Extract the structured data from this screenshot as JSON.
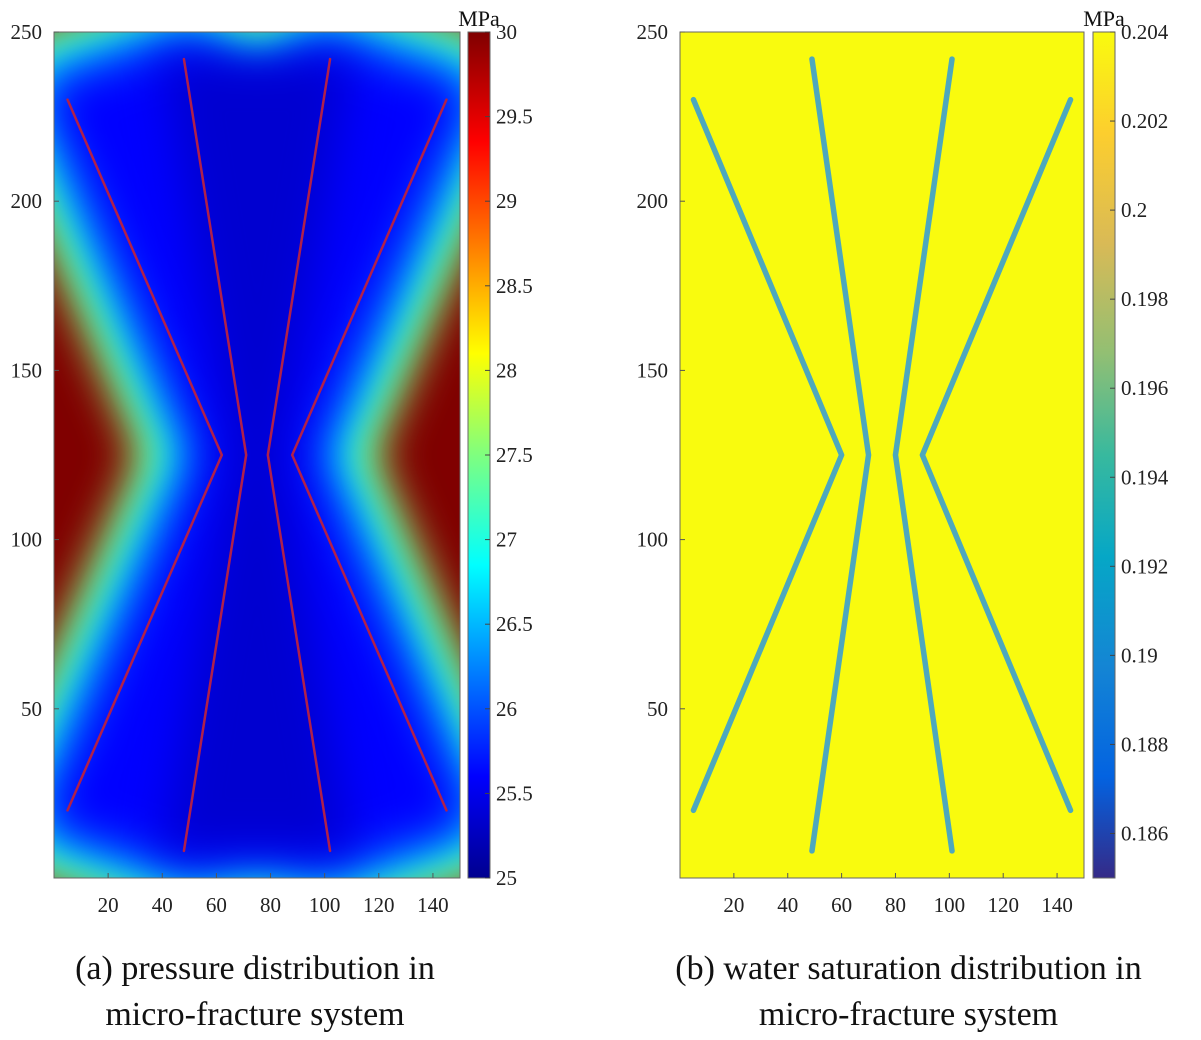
{
  "chart_data": [
    {
      "type": "heatmap",
      "caption_lines": [
        "(a) pressure distribution in",
        "micro-fracture system"
      ],
      "xlim": [
        0,
        150
      ],
      "ylim": [
        0,
        250
      ],
      "x_ticks": [
        20,
        40,
        60,
        80,
        100,
        120,
        140
      ],
      "y_ticks": [
        50,
        100,
        150,
        200,
        250
      ],
      "colorbar": {
        "unit": "MPa",
        "min": 25,
        "max": 30,
        "ticks": [
          25,
          25.5,
          26,
          26.5,
          27,
          27.5,
          28,
          28.5,
          29,
          29.5,
          30
        ],
        "colormap": "jet"
      },
      "field": {
        "background": 30,
        "fracture_value": 25.3,
        "region_value": 25.6
      },
      "fracture_color": "#b0204a",
      "fractures": [
        [
          [
            5,
            230
          ],
          [
            62,
            125
          ],
          [
            5,
            20
          ]
        ],
        [
          [
            48,
            242
          ],
          [
            71,
            125
          ],
          [
            48,
            8
          ]
        ],
        [
          [
            102,
            242
          ],
          [
            79,
            125
          ],
          [
            102,
            8
          ]
        ],
        [
          [
            145,
            230
          ],
          [
            88,
            125
          ],
          [
            145,
            20
          ]
        ]
      ]
    },
    {
      "type": "heatmap",
      "caption_lines": [
        "(b) water saturation distribution in",
        "micro-fracture system"
      ],
      "xlim": [
        0,
        150
      ],
      "ylim": [
        0,
        250
      ],
      "x_ticks": [
        20,
        40,
        60,
        80,
        100,
        120,
        140
      ],
      "y_ticks": [
        50,
        100,
        150,
        200,
        250
      ],
      "colorbar": {
        "unit": "MPa",
        "min": 0.185,
        "max": 0.204,
        "ticks": [
          0.186,
          0.188,
          0.19,
          0.192,
          0.194,
          0.196,
          0.198,
          0.2,
          0.202,
          0.204
        ],
        "colormap": "parula"
      },
      "field": {
        "background": 0.204,
        "fracture_value": 0.1925
      },
      "fracture_color": "#3a9fd0",
      "fractures": [
        [
          [
            5,
            230
          ],
          [
            60,
            125
          ],
          [
            5,
            20
          ]
        ],
        [
          [
            49,
            242
          ],
          [
            70,
            125
          ],
          [
            49,
            8
          ]
        ],
        [
          [
            101,
            242
          ],
          [
            80,
            125
          ],
          [
            101,
            8
          ]
        ],
        [
          [
            145,
            230
          ],
          [
            90,
            125
          ],
          [
            145,
            20
          ]
        ]
      ]
    }
  ]
}
